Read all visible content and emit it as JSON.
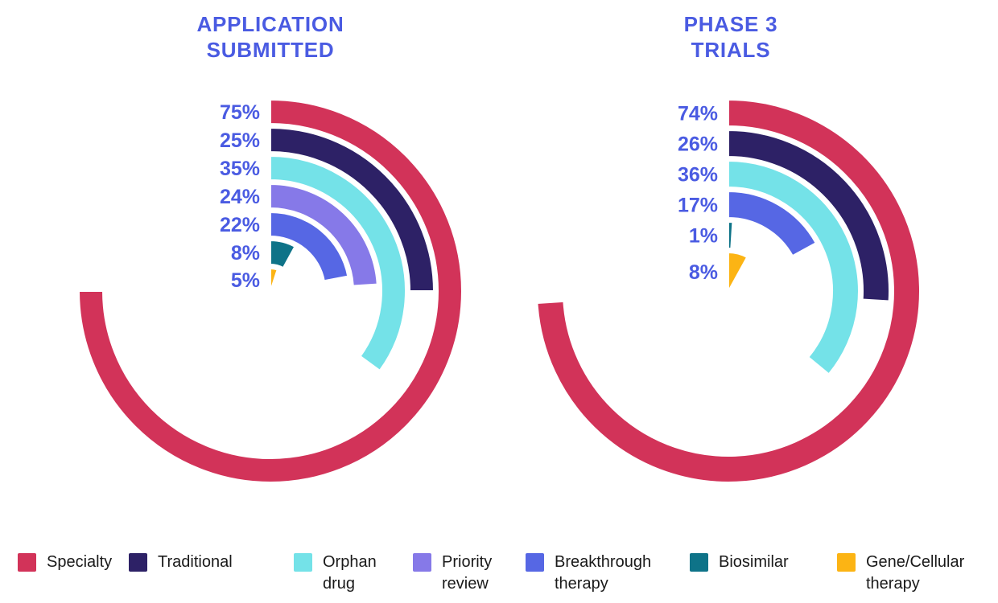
{
  "page": {
    "background": "#ffffff"
  },
  "colors": {
    "title_blue": "#4A5BE2",
    "percent_label_blue": "#4A5BE2",
    "legend_text": "#1A1A1A",
    "ring_separator": "#ffffff"
  },
  "legend": {
    "items": [
      {
        "label": "Specialty",
        "color": "#D23359"
      },
      {
        "label": "Traditional",
        "color": "#2D2166"
      },
      {
        "label": "Orphan drug",
        "color": "#74E2E8"
      },
      {
        "label": "Priority review",
        "color": "#8679E8"
      },
      {
        "label": "Breakthrough therapy",
        "color": "#5667E4"
      },
      {
        "label": "Biosimilar",
        "color": "#0E7388"
      },
      {
        "label": "Gene/Cellular therapy",
        "color": "#FCB414"
      }
    ]
  },
  "chart_data": [
    {
      "type": "radial_bar",
      "title": "APPLICATION SUBMITTED",
      "title_lines": [
        "APPLICATION",
        "SUBMITTED"
      ],
      "unit": "%",
      "start_angle_deg": 0,
      "direction": "clockwise",
      "scale": {
        "full_circle_value": 100
      },
      "categories": [
        "Specialty",
        "Traditional",
        "Orphan drug",
        "Priority review",
        "Breakthrough therapy",
        "Biosimilar",
        "Gene/Cellular therapy"
      ],
      "values": [
        75,
        25,
        35,
        24,
        22,
        8,
        5
      ],
      "value_labels": [
        "75%",
        "25%",
        "35%",
        "24%",
        "22%",
        "8%",
        "5%"
      ]
    },
    {
      "type": "radial_bar",
      "title": "PHASE 3 TRIALS",
      "title_lines": [
        "PHASE 3",
        "TRIALS"
      ],
      "unit": "%",
      "start_angle_deg": 0,
      "direction": "clockwise",
      "scale": {
        "full_circle_value": 100
      },
      "categories": [
        "Specialty",
        "Traditional",
        "Orphan drug",
        "Breakthrough therapy",
        "Biosimilar",
        "Gene/Cellular therapy"
      ],
      "values": [
        74,
        26,
        36,
        17,
        1,
        8
      ],
      "value_labels": [
        "74%",
        "26%",
        "36%",
        "17%",
        "1%",
        "8%"
      ]
    }
  ]
}
